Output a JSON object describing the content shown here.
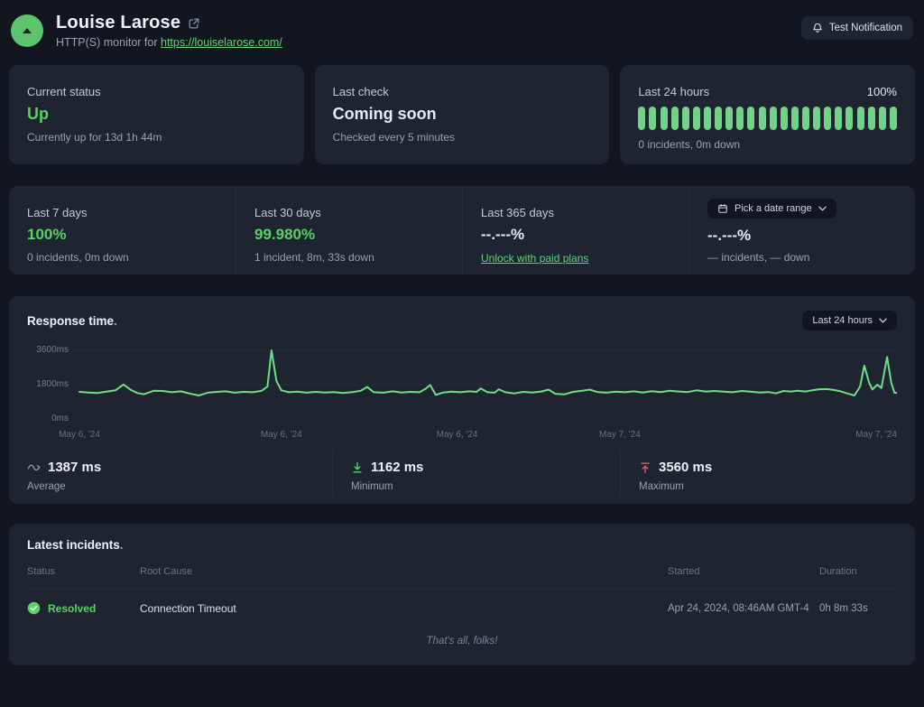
{
  "header": {
    "title": "Louise Larose",
    "subtitle_prefix": "HTTP(S) monitor for ",
    "url": "https://louiselarose.com/",
    "test_button": "Test Notification"
  },
  "status_cards": {
    "current": {
      "label": "Current status",
      "value": "Up",
      "note": "Currently up for 13d 1h 44m"
    },
    "last_check": {
      "label": "Last check",
      "value": "Coming soon",
      "note": "Checked every 5 minutes"
    },
    "last24": {
      "label": "Last 24 hours",
      "percent": "100%",
      "note": "0 incidents, 0m down",
      "bars": 24
    }
  },
  "uptime_row": {
    "last7": {
      "label": "Last 7 days",
      "value": "100%",
      "note": "0 incidents, 0m down"
    },
    "last30": {
      "label": "Last 30 days",
      "value": "99.980%",
      "note": "1 incident, 8m, 33s down"
    },
    "last365": {
      "label": "Last 365 days",
      "value": "--.---%",
      "link": "Unlock with paid plans"
    },
    "custom": {
      "button": "Pick a date range",
      "value": "--.---%",
      "note": "— incidents, — down"
    }
  },
  "response": {
    "title": "Response time",
    "title_dot": ".",
    "range_button": "Last 24 hours",
    "stats": {
      "avg": {
        "value": "1387 ms",
        "label": "Average"
      },
      "min": {
        "value": "1162 ms",
        "label": "Minimum"
      },
      "max": {
        "value": "3560 ms",
        "label": "Maximum"
      }
    }
  },
  "chart_data": {
    "type": "line",
    "title": "Response time",
    "ylabel": "ms",
    "ylim": [
      0,
      3600
    ],
    "grid": true,
    "line_color": "#6fdd8b",
    "yticks": [
      {
        "value": 0,
        "label": "0ms"
      },
      {
        "value": 1800,
        "label": "1800ms"
      },
      {
        "value": 3600,
        "label": "3600ms"
      }
    ],
    "x_labels": [
      {
        "label": "May 6, '24",
        "pos": 0,
        "anchor": "middle"
      },
      {
        "label": "May 6, '24",
        "pos": 0.247,
        "anchor": "middle"
      },
      {
        "label": "May 6, '24",
        "pos": 0.462,
        "anchor": "middle"
      },
      {
        "label": "May 7, '24",
        "pos": 0.661,
        "anchor": "middle"
      },
      {
        "label": "May 7, '24",
        "pos": 1,
        "anchor": "end"
      }
    ],
    "points": [
      [
        0,
        1420
      ],
      [
        0.011,
        1390
      ],
      [
        0.022,
        1360
      ],
      [
        0.033,
        1430
      ],
      [
        0.044,
        1500
      ],
      [
        0.054,
        1810
      ],
      [
        0.063,
        1520
      ],
      [
        0.071,
        1360
      ],
      [
        0.079,
        1300
      ],
      [
        0.091,
        1480
      ],
      [
        0.102,
        1470
      ],
      [
        0.113,
        1400
      ],
      [
        0.124,
        1450
      ],
      [
        0.135,
        1330
      ],
      [
        0.146,
        1230
      ],
      [
        0.157,
        1380
      ],
      [
        0.168,
        1420
      ],
      [
        0.179,
        1450
      ],
      [
        0.19,
        1380
      ],
      [
        0.201,
        1420
      ],
      [
        0.212,
        1400
      ],
      [
        0.223,
        1480
      ],
      [
        0.23,
        1700
      ],
      [
        0.235,
        3600
      ],
      [
        0.241,
        2000
      ],
      [
        0.247,
        1500
      ],
      [
        0.256,
        1400
      ],
      [
        0.267,
        1430
      ],
      [
        0.278,
        1380
      ],
      [
        0.289,
        1420
      ],
      [
        0.3,
        1390
      ],
      [
        0.311,
        1410
      ],
      [
        0.322,
        1360
      ],
      [
        0.333,
        1400
      ],
      [
        0.344,
        1480
      ],
      [
        0.352,
        1680
      ],
      [
        0.36,
        1400
      ],
      [
        0.372,
        1380
      ],
      [
        0.383,
        1450
      ],
      [
        0.394,
        1390
      ],
      [
        0.405,
        1420
      ],
      [
        0.416,
        1400
      ],
      [
        0.424,
        1600
      ],
      [
        0.429,
        1780
      ],
      [
        0.436,
        1260
      ],
      [
        0.444,
        1380
      ],
      [
        0.455,
        1430
      ],
      [
        0.466,
        1400
      ],
      [
        0.477,
        1450
      ],
      [
        0.486,
        1420
      ],
      [
        0.491,
        1600
      ],
      [
        0.499,
        1400
      ],
      [
        0.508,
        1380
      ],
      [
        0.513,
        1560
      ],
      [
        0.521,
        1400
      ],
      [
        0.532,
        1340
      ],
      [
        0.543,
        1420
      ],
      [
        0.554,
        1390
      ],
      [
        0.565,
        1440
      ],
      [
        0.574,
        1540
      ],
      [
        0.582,
        1320
      ],
      [
        0.593,
        1290
      ],
      [
        0.604,
        1420
      ],
      [
        0.615,
        1480
      ],
      [
        0.624,
        1540
      ],
      [
        0.634,
        1410
      ],
      [
        0.645,
        1380
      ],
      [
        0.656,
        1430
      ],
      [
        0.667,
        1400
      ],
      [
        0.678,
        1450
      ],
      [
        0.689,
        1390
      ],
      [
        0.7,
        1460
      ],
      [
        0.711,
        1410
      ],
      [
        0.722,
        1480
      ],
      [
        0.733,
        1440
      ],
      [
        0.744,
        1410
      ],
      [
        0.755,
        1500
      ],
      [
        0.766,
        1440
      ],
      [
        0.777,
        1470
      ],
      [
        0.788,
        1430
      ],
      [
        0.799,
        1400
      ],
      [
        0.81,
        1470
      ],
      [
        0.821,
        1430
      ],
      [
        0.832,
        1390
      ],
      [
        0.843,
        1410
      ],
      [
        0.852,
        1340
      ],
      [
        0.861,
        1470
      ],
      [
        0.87,
        1440
      ],
      [
        0.879,
        1480
      ],
      [
        0.888,
        1440
      ],
      [
        0.896,
        1500
      ],
      [
        0.905,
        1560
      ],
      [
        0.914,
        1570
      ],
      [
        0.923,
        1520
      ],
      [
        0.931,
        1450
      ],
      [
        0.94,
        1330
      ],
      [
        0.948,
        1230
      ],
      [
        0.955,
        1700
      ],
      [
        0.96,
        2800
      ],
      [
        0.966,
        1900
      ],
      [
        0.97,
        1550
      ],
      [
        0.976,
        1800
      ],
      [
        0.981,
        1620
      ],
      [
        0.988,
        3250
      ],
      [
        0.993,
        1900
      ],
      [
        0.997,
        1380
      ],
      [
        1,
        1360
      ]
    ]
  },
  "incidents": {
    "title": "Latest incidents",
    "title_dot": ".",
    "headers": [
      "Status",
      "Root Cause",
      "Started",
      "Duration"
    ],
    "rows": [
      {
        "status": "Resolved",
        "root_cause": "Connection Timeout",
        "started": "Apr 24, 2024, 08:46AM GMT-4",
        "duration": "0h 8m 33s"
      }
    ],
    "footer": "That's all, folks!"
  },
  "colors": {
    "accent_green": "#56d364",
    "bar_green": "#72d287",
    "line_green": "#6fdd8b",
    "red": "#e35d5d"
  }
}
